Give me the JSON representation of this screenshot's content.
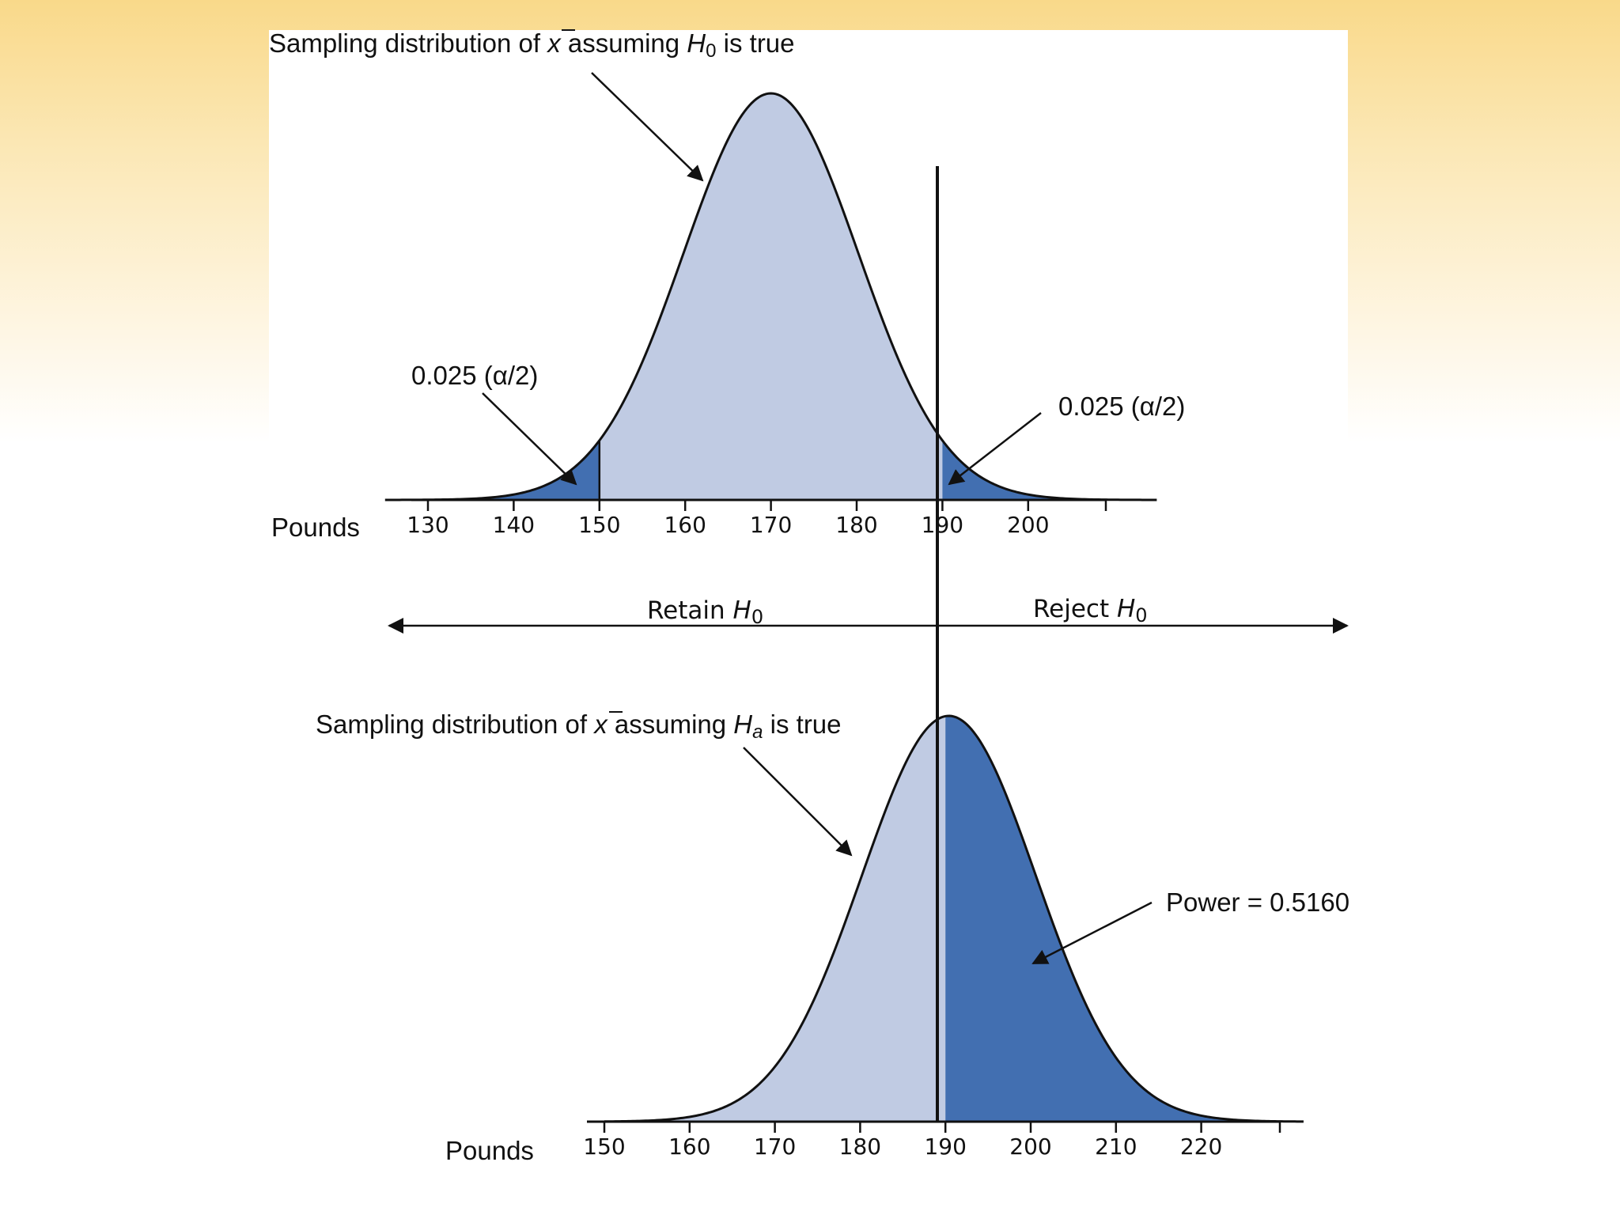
{
  "colors": {
    "light": "#c0cbe3",
    "dark": "#426fb1",
    "ink": "#111111"
  },
  "top": {
    "caption_parts": [
      "Sampling distribution of ",
      "x",
      " assuming ",
      "H",
      "0",
      " is true"
    ],
    "mean": 170,
    "sd": 10.2,
    "ticks": [
      130,
      140,
      150,
      160,
      170,
      180,
      190,
      200
    ],
    "lower_critical": 150,
    "upper_critical": 190,
    "tail_left_label": "0.025 (α/2)",
    "tail_right_label": "0.025 (α/2)",
    "axis_label": "Pounds"
  },
  "decision": {
    "retain_parts": [
      "Retain ",
      "H",
      "0"
    ],
    "reject_parts": [
      "Reject ",
      "H",
      "0"
    ]
  },
  "bottom": {
    "caption_parts": [
      "Sampling distribution of ",
      "x",
      " assuming ",
      "H",
      "a",
      " is true"
    ],
    "mean": 190.4,
    "sd": 10.2,
    "ticks": [
      150,
      160,
      170,
      180,
      190,
      200,
      210,
      220
    ],
    "critical": 190,
    "power_label": "Power = 0.5160",
    "axis_label": "Pounds"
  }
}
